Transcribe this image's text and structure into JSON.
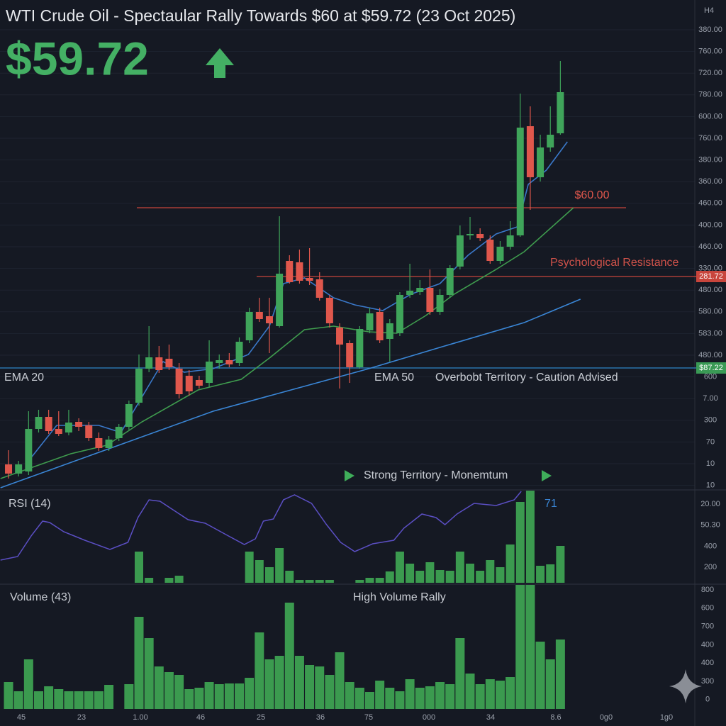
{
  "chart_data": {
    "type": "candlestick",
    "title": "WTI Crude Oil - Spectaular Rally Towards $60 at $59.72 (23 Oct 2025)",
    "price": "$59.72",
    "timeframe": "H4",
    "xlim": [
      -0.85,
      68.4
    ],
    "ylim": [
      0,
      690
    ],
    "up_color": "#3fa45a",
    "down_color": "#e0574c",
    "candles": {
      "open": [
        35,
        22,
        25,
        85,
        102,
        85,
        80,
        95,
        90,
        72,
        58,
        72,
        88,
        122,
        170,
        186,
        184,
        170,
        160,
        154,
        150,
        178,
        182,
        178,
        210,
        250,
        244,
        230,
        322,
        320,
        298,
        296,
        270,
        228,
        206,
        172,
        224,
        250,
        212,
        220,
        274,
        278,
        284,
        250,
        274,
        314,
        358,
        360,
        352,
        322,
        342,
        358,
        512,
        440,
        482,
        502
      ],
      "high": [
        55,
        40,
        110,
        112,
        112,
        110,
        112,
        100,
        95,
        80,
        75,
        92,
        125,
        190,
        230,
        202,
        204,
        178,
        168,
        160,
        210,
        190,
        192,
        214,
        256,
        270,
        270,
        385,
        330,
        338,
        340,
        306,
        274,
        234,
        210,
        230,
        256,
        256,
        240,
        278,
        318,
        295,
        310,
        282,
        316,
        372,
        384,
        368,
        358,
        350,
        378,
        558,
        540,
        500,
        540,
        604
      ],
      "low": [
        15,
        18,
        20,
        80,
        78,
        75,
        76,
        82,
        68,
        54,
        54,
        68,
        84,
        118,
        165,
        164,
        168,
        128,
        132,
        142,
        144,
        170,
        172,
        174,
        206,
        236,
        192,
        228,
        290,
        290,
        288,
        266,
        228,
        142,
        150,
        170,
        220,
        206,
        180,
        216,
        270,
        274,
        246,
        246,
        270,
        310,
        352,
        350,
        318,
        318,
        338,
        356,
        394,
        434,
        476,
        500
      ],
      "close": [
        22,
        35,
        85,
        102,
        82,
        78,
        94,
        88,
        72,
        58,
        70,
        88,
        120,
        170,
        186,
        168,
        172,
        134,
        138,
        146,
        180,
        182,
        176,
        208,
        250,
        240,
        234,
        304,
        292,
        294,
        294,
        270,
        234,
        204,
        172,
        226,
        248,
        210,
        234,
        274,
        280,
        284,
        250,
        274,
        312,
        358,
        360,
        354,
        322,
        342,
        358,
        510,
        440,
        482,
        500,
        560
      ]
    },
    "overlays": [
      {
        "color": "#3f9c4e",
        "x": [
          -0.8,
          6.2,
          9.8,
          13.3,
          18.9,
          23.2,
          26,
          29.5,
          32.4,
          35.9,
          38.7,
          41.6,
          44.4,
          48.6,
          51.4,
          56.3
        ],
        "values": [
          15,
          50,
          62,
          95,
          140,
          155,
          185,
          225,
          230,
          222,
          220,
          245,
          275,
          310,
          335,
          397
        ]
      },
      {
        "color": "#3a78c9",
        "x": [
          2,
          4.8,
          9,
          11.2,
          13.3,
          15.4,
          17.5,
          20.4,
          23.9,
          26,
          27.4,
          29.5,
          32.4,
          34.5,
          37.3,
          40.1,
          43,
          45.8,
          48.6,
          50.7,
          51.8,
          53.6,
          55.7
        ],
        "values": [
          40,
          90,
          90,
          80,
          130,
          180,
          165,
          170,
          190,
          230,
          290,
          298,
          270,
          260,
          252,
          275,
          290,
          330,
          360,
          370,
          430,
          450,
          490
        ]
      },
      {
        "color": "#3a86d6",
        "x": [
          -0.8,
          20.4,
          35.9,
          43,
          51.4,
          57
        ],
        "values": [
          2,
          110,
          170,
          200,
          235,
          268
        ]
      }
    ],
    "levels": [
      {
        "value": 397,
        "color": "#c8453c",
        "label": "$60.00"
      },
      {
        "value": 300,
        "color": "#c8453c",
        "label": "281.72"
      },
      {
        "value": 171,
        "color": "#2f86c8",
        "label": "$87.22"
      }
    ],
    "annotations": [
      "Psychological Resistance",
      "EMA 20",
      "EMA 50",
      "Overbobt Territory - Caution Advised",
      "Strong Territory - Monemtum"
    ],
    "price_axis_labels": [
      "380.00",
      "760.00",
      "720.00",
      "780.00",
      "600.00",
      "760.00",
      "380.00",
      "360.00",
      "460.00",
      "400.00",
      "460.00",
      "330.00",
      "480.00",
      "580.00",
      "583.00",
      "480.00",
      "600",
      "7.00",
      "300",
      "70",
      "10",
      "10"
    ],
    "x_labels": [
      "45",
      "23",
      "1.00",
      "46",
      "25",
      "36",
      "75",
      "000",
      "34",
      "8.6",
      "0g0",
      "1g0"
    ],
    "rsi": {
      "label": "RSI (14)",
      "last_label": "71",
      "color": "#5b4fc4",
      "ylim": [
        0,
        130
      ],
      "x": [
        -0.8,
        0.9,
        2.3,
        3.4,
        4.1,
        5.5,
        7.6,
        10.1,
        11.9,
        12.9,
        14,
        15.1,
        16.5,
        17.9,
        19.6,
        21.8,
        23.5,
        24.6,
        25.4,
        26.4,
        27.4,
        28.5,
        30.2,
        31.7,
        33.1,
        34.5,
        36.3,
        38.4,
        39.4,
        41.2,
        42.6,
        43.5,
        44.7,
        46.4,
        48.6,
        50.4,
        51.1
      ],
      "values": [
        32,
        37,
        67,
        87,
        85,
        72,
        60,
        47,
        57,
        92,
        117,
        115,
        102,
        89,
        84,
        67,
        54,
        62,
        87,
        90,
        117,
        124,
        112,
        82,
        57,
        44,
        55,
        60,
        77,
        97,
        92,
        82,
        97,
        112,
        109,
        117,
        129
      ],
      "bars": [
        null,
        null,
        null,
        null,
        null,
        null,
        null,
        null,
        null,
        null,
        null,
        null,
        null,
        44,
        7,
        null,
        7,
        10,
        null,
        null,
        null,
        null,
        null,
        null,
        44,
        32,
        22,
        49,
        17,
        4,
        4,
        4,
        4,
        null,
        null,
        4,
        7,
        7,
        16,
        44,
        27,
        17,
        29,
        18,
        17,
        44,
        27,
        17,
        32,
        22,
        54,
        114,
        130,
        24,
        26,
        52
      ],
      "axis_labels": [
        "20.00",
        "50.30",
        "400",
        "200"
      ]
    },
    "volume": {
      "label": "Volume (43)",
      "note": "High Volume Rally",
      "color": "#3b9a4f",
      "ylim": [
        0,
        175
      ],
      "values": [
        38,
        25,
        70,
        25,
        32,
        28,
        25,
        25,
        25,
        25,
        34,
        null,
        35,
        130,
        100,
        60,
        52,
        48,
        28,
        30,
        38,
        35,
        36,
        36,
        44,
        108,
        70,
        75,
        150,
        75,
        62,
        60,
        48,
        80,
        38,
        30,
        24,
        40,
        30,
        25,
        42,
        30,
        32,
        38,
        35,
        100,
        50,
        35,
        42,
        40,
        45,
        175,
        175,
        95,
        70,
        98
      ],
      "axis_labels": [
        "800",
        "600",
        "700",
        "400",
        "400",
        "300",
        "0"
      ]
    }
  }
}
